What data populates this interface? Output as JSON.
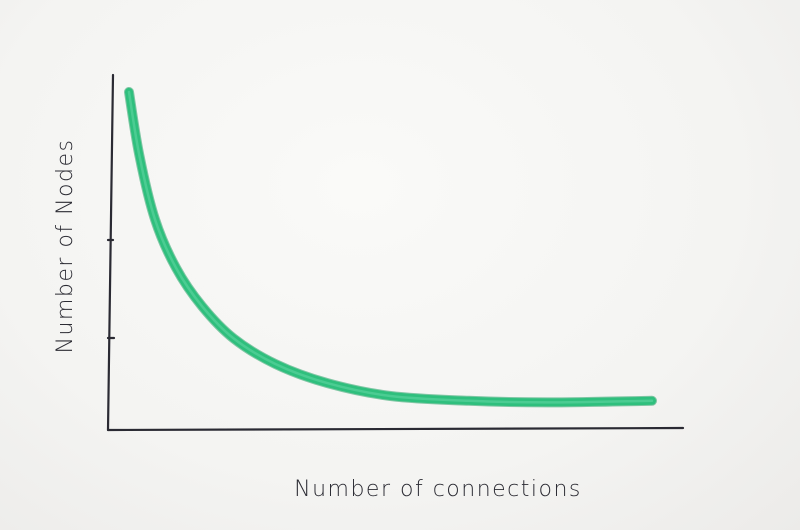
{
  "chart_data": {
    "type": "line",
    "xlabel": "Number of connections",
    "ylabel": "Number of Nodes",
    "x_ticks": [],
    "y_ticks": [],
    "grid": false,
    "legend": "none",
    "series": [
      {
        "color": "#2fbf7d",
        "shape": "decreasing-power-law",
        "x": [
          0.0,
          0.02,
          0.05,
          0.09,
          0.14,
          0.2,
          0.28,
          0.38,
          0.5,
          0.65,
          0.8,
          1.0
        ],
        "y": [
          1.0,
          0.8,
          0.6,
          0.45,
          0.33,
          0.23,
          0.15,
          0.09,
          0.05,
          0.035,
          0.03,
          0.035
        ]
      }
    ]
  }
}
